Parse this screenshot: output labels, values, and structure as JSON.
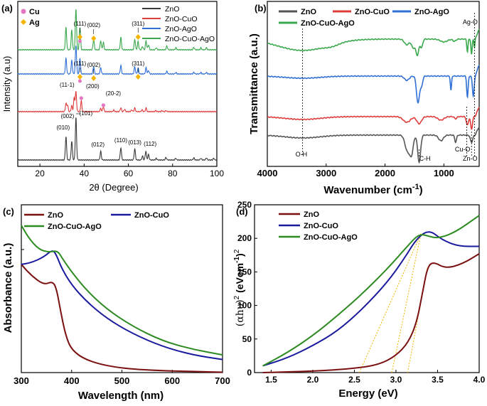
{
  "chart_data": [
    {
      "panel": "(a)",
      "type": "line",
      "subtype": "XRD stacked patterns",
      "xlabel": "2θ (Degree)",
      "ylabel": "Intensity (a.u)",
      "xlim": [
        10,
        100
      ],
      "xticks": [
        "20",
        "40",
        "60",
        "80",
        "100"
      ],
      "grid": false,
      "legend_position": "top-right",
      "marker_legend": [
        {
          "label": "Cu",
          "color": "#e377c2",
          "shape": "circle"
        },
        {
          "label": "Ag",
          "color": "#f5b400",
          "shape": "diamond"
        }
      ],
      "series": [
        {
          "name": "ZnO",
          "color": "#3a3a3a",
          "offset": 0,
          "peaks": [
            [
              31.8,
              55
            ],
            [
              34.4,
              44
            ],
            [
              36.3,
              100
            ],
            [
              47.5,
              20
            ],
            [
              56.6,
              29
            ],
            [
              62.9,
              26
            ],
            [
              66.4,
              9
            ],
            [
              67.9,
              21
            ],
            [
              69.1,
              13
            ],
            [
              72.6,
              4
            ],
            [
              77.0,
              6
            ],
            [
              81.4,
              4
            ],
            [
              89.6,
              5
            ],
            [
              92.8,
              4
            ],
            [
              95.3,
              5
            ],
            [
              98.6,
              4
            ]
          ]
        },
        {
          "name": "ZnO-CuO",
          "color": "#e03b3b",
          "offset": 1,
          "peaks": [
            [
              31.8,
              40
            ],
            [
              32.5,
              32
            ],
            [
              34.4,
              30
            ],
            [
              35.5,
              68
            ],
            [
              36.3,
              100
            ],
            [
              38.7,
              55
            ],
            [
              47.5,
              16
            ],
            [
              48.7,
              24
            ],
            [
              53.4,
              8
            ],
            [
              56.6,
              20
            ],
            [
              58.3,
              12
            ],
            [
              61.5,
              9
            ],
            [
              62.9,
              18
            ],
            [
              66.2,
              9
            ],
            [
              68.0,
              18
            ],
            [
              72.4,
              5
            ],
            [
              75.2,
              5
            ],
            [
              77.0,
              5
            ]
          ]
        },
        {
          "name": "ZnO-AgO",
          "color": "#2f6fd6",
          "offset": 2,
          "peaks": [
            [
              31.8,
              55
            ],
            [
              34.4,
              48
            ],
            [
              36.3,
              100
            ],
            [
              38.1,
              55
            ],
            [
              44.3,
              26
            ],
            [
              47.5,
              22
            ],
            [
              56.6,
              30
            ],
            [
              62.9,
              25
            ],
            [
              64.4,
              20
            ],
            [
              68.0,
              22
            ],
            [
              69.1,
              12
            ],
            [
              77.4,
              9
            ],
            [
              81.5,
              5
            ],
            [
              89.6,
              6
            ],
            [
              92.8,
              5
            ],
            [
              95.3,
              5
            ]
          ]
        },
        {
          "name": "ZnO-CuO-AgO",
          "color": "#3aa84d",
          "offset": 3,
          "peaks": [
            [
              31.8,
              55
            ],
            [
              34.4,
              48
            ],
            [
              36.3,
              100
            ],
            [
              38.1,
              55
            ],
            [
              44.3,
              26
            ],
            [
              47.5,
              22
            ],
            [
              48.7,
              18
            ],
            [
              56.6,
              30
            ],
            [
              62.9,
              25
            ],
            [
              64.4,
              20
            ],
            [
              66.4,
              8
            ],
            [
              68.0,
              22
            ],
            [
              69.1,
              12
            ],
            [
              72.6,
              5
            ],
            [
              77.4,
              9
            ],
            [
              81.5,
              5
            ],
            [
              89.6,
              6
            ],
            [
              92.8,
              5
            ],
            [
              95.3,
              5
            ]
          ]
        }
      ],
      "annotations": {
        "znO": [
          {
            "label": "(010)",
            "x": 31.8
          },
          {
            "label": "(002)",
            "x": 34.4
          },
          {
            "label": "(101)",
            "x": 36.3
          },
          {
            "label": "(012)",
            "x": 47.5
          },
          {
            "label": "(110)",
            "x": 56.6
          },
          {
            "label": "(013)",
            "x": 62.9
          },
          {
            "label": "(112)",
            "x": 67.9
          }
        ],
        "cuo": [
          {
            "label": "(11-1)",
            "x": 35.5
          },
          {
            "label": "(200)",
            "x": 38.7
          },
          {
            "label": "(20-2)",
            "x": 48.7
          }
        ],
        "ago_blue": [
          {
            "label": "(111)",
            "x": 38.1
          },
          {
            "label": "(002)",
            "x": 44.3
          },
          {
            "label": "(311)",
            "x": 64.4
          }
        ],
        "ago_green": [
          {
            "label": "(111)",
            "x": 38.1
          },
          {
            "label": "(002)",
            "x": 44.3
          },
          {
            "label": "(311)",
            "x": 64.4
          }
        ]
      }
    },
    {
      "panel": "(b)",
      "type": "line",
      "subtype": "FTIR spectra",
      "xlabel": "Wavenumber (cm",
      "xlabel_sup": "-1",
      "xlabel_end": ")",
      "ylabel": "Transmittance (a.u.)",
      "xlim": [
        4000,
        400
      ],
      "xticks": [
        "4000",
        "3000",
        "2000",
        "1000"
      ],
      "grid": false,
      "legend_position": "top",
      "series": [
        {
          "name": "ZnO",
          "color": "#555555"
        },
        {
          "name": "ZnO-CuO",
          "color": "#e03b3b"
        },
        {
          "name": "ZnO-AgO",
          "color": "#2f6fd6"
        },
        {
          "name": "ZnO-CuO-AgO",
          "color": "#3aa84d"
        }
      ],
      "annotations": [
        {
          "label": "O-H",
          "x": 3400
        },
        {
          "label": "C-H",
          "x": 1420
        },
        {
          "label": "Cu-O",
          "x": 610
        },
        {
          "label": "Zn-O",
          "x": 530
        },
        {
          "label": "Ag-O",
          "x": 480
        }
      ]
    },
    {
      "panel": "(c)",
      "type": "line",
      "subtype": "UV-Vis absorbance",
      "xlabel": "Wavelength (nm)",
      "ylabel": "Absorbance (a.u.)",
      "xlim": [
        300,
        700
      ],
      "xticks": [
        "300",
        "400",
        "500",
        "600",
        "700"
      ],
      "grid": false,
      "legend_position": "top",
      "series": [
        {
          "name": "ZnO",
          "color": "#7a1010",
          "points": [
            [
              300,
              0.58
            ],
            [
              320,
              0.52
            ],
            [
              345,
              0.47
            ],
            [
              362,
              0.49
            ],
            [
              370,
              0.45
            ],
            [
              378,
              0.33
            ],
            [
              388,
              0.2
            ],
            [
              400,
              0.12
            ],
            [
              430,
              0.065
            ],
            [
              480,
              0.03
            ],
            [
              550,
              0.012
            ],
            [
              700,
              0.002
            ]
          ]
        },
        {
          "name": "ZnO-CuO",
          "color": "#1a1a9e",
          "points": [
            [
              300,
              0.58
            ],
            [
              320,
              0.59
            ],
            [
              345,
              0.62
            ],
            [
              362,
              0.66
            ],
            [
              370,
              0.63
            ],
            [
              380,
              0.56
            ],
            [
              400,
              0.47
            ],
            [
              430,
              0.38
            ],
            [
              470,
              0.29
            ],
            [
              520,
              0.21
            ],
            [
              580,
              0.14
            ],
            [
              640,
              0.095
            ],
            [
              700,
              0.07
            ]
          ]
        },
        {
          "name": "ZnO-CuO-AgO",
          "color": "#2e8b22",
          "points": [
            [
              300,
              0.79
            ],
            [
              315,
              0.72
            ],
            [
              335,
              0.66
            ],
            [
              355,
              0.645
            ],
            [
              372,
              0.655
            ],
            [
              382,
              0.61
            ],
            [
              400,
              0.54
            ],
            [
              430,
              0.44
            ],
            [
              470,
              0.34
            ],
            [
              520,
              0.25
            ],
            [
              580,
              0.17
            ],
            [
              640,
              0.125
            ],
            [
              700,
              0.095
            ]
          ]
        }
      ]
    },
    {
      "panel": "(d)",
      "type": "line",
      "subtype": "Tauc plot",
      "xlabel": "Energy (eV)",
      "ylabel_a": "(αhυ)",
      "ylabel_b": " (eVcm",
      "ylabel_c": ")",
      "ylabel_sup1": "2",
      "ylabel_sup2": "-1",
      "ylabel_sup3": "2",
      "xlim": [
        1.3,
        4.0
      ],
      "ylim": [
        0,
        250
      ],
      "xticks": [
        "1.5",
        "2.0",
        "2.5",
        "3.0",
        "3.5",
        "4.0"
      ],
      "yticks": [
        "0",
        "50",
        "100",
        "150",
        "200",
        "250"
      ],
      "grid": false,
      "legend_position": "top-left",
      "series": [
        {
          "name": "ZnO",
          "color": "#7a1010",
          "points": [
            [
              1.4,
              0
            ],
            [
              2.0,
              2
            ],
            [
              2.5,
              6
            ],
            [
              2.8,
              12
            ],
            [
              3.0,
              25
            ],
            [
              3.15,
              45
            ],
            [
              3.25,
              75
            ],
            [
              3.32,
              120
            ],
            [
              3.38,
              158
            ],
            [
              3.45,
              165
            ],
            [
              3.6,
              155
            ],
            [
              3.8,
              162
            ],
            [
              4.0,
              177
            ]
          ]
        },
        {
          "name": "ZnO-CuO",
          "color": "#1a1a9e",
          "points": [
            [
              1.4,
              10
            ],
            [
              1.7,
              22
            ],
            [
              2.0,
              40
            ],
            [
              2.3,
              62
            ],
            [
              2.6,
              95
            ],
            [
              2.9,
              135
            ],
            [
              3.1,
              170
            ],
            [
              3.25,
              200
            ],
            [
              3.4,
              213
            ],
            [
              3.55,
              198
            ],
            [
              3.75,
              188
            ],
            [
              4.0,
              188
            ]
          ]
        },
        {
          "name": "ZnO-CuO-AgO",
          "color": "#2e8b22",
          "points": [
            [
              1.4,
              10
            ],
            [
              1.7,
              30
            ],
            [
              2.0,
              55
            ],
            [
              2.3,
              85
            ],
            [
              2.6,
              118
            ],
            [
              2.9,
              155
            ],
            [
              3.15,
              190
            ],
            [
              3.28,
              207
            ],
            [
              3.4,
              203
            ],
            [
              3.5,
              200
            ],
            [
              3.7,
              208
            ],
            [
              4.0,
              234
            ]
          ]
        }
      ],
      "tangents": [
        {
          "from": [
            2.56,
            0
          ],
          "to": [
            3.3,
            207
          ],
          "color": "#f5b400"
        },
        {
          "from": [
            2.95,
            0
          ],
          "to": [
            3.3,
            207
          ],
          "color": "#f5b400"
        },
        {
          "from": [
            3.14,
            0
          ],
          "to": [
            3.38,
            158
          ],
          "color": "#f5b400"
        }
      ]
    }
  ]
}
